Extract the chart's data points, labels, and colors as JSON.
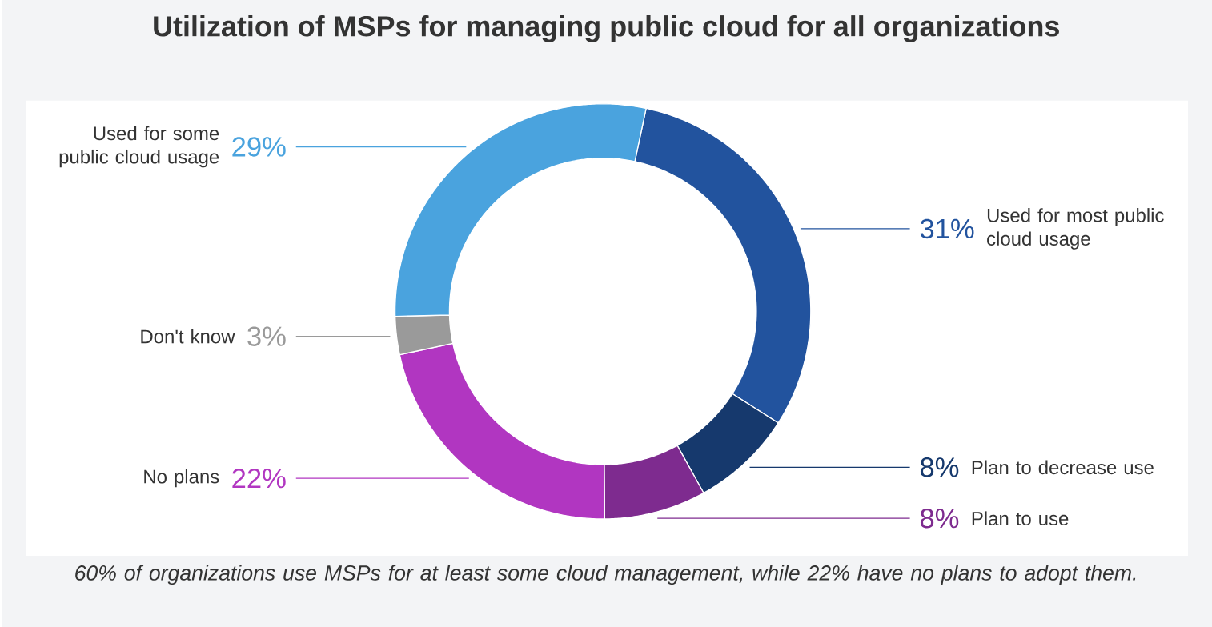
{
  "chart_data": {
    "type": "donut",
    "title": "Utilization of MSPs for managing public cloud for all organizations",
    "categories": [
      "Used for most public cloud usage",
      "Plan to decrease use",
      "Plan to use",
      "No plans",
      "Don't know",
      "Used for some public cloud usage"
    ],
    "values": [
      31,
      8,
      8,
      22,
      3,
      29
    ],
    "value_labels": [
      "31%",
      "8%",
      "8%",
      "22%",
      "3%",
      "29%"
    ],
    "colors": [
      "#22539e",
      "#16396d",
      "#7e2b8f",
      "#b136c1",
      "#9a9a9a",
      "#4aa3de"
    ],
    "annotations": [
      "60% of organizations use MSPs for at least some cloud management, while 22% have no plans to adopt them."
    ]
  }
}
